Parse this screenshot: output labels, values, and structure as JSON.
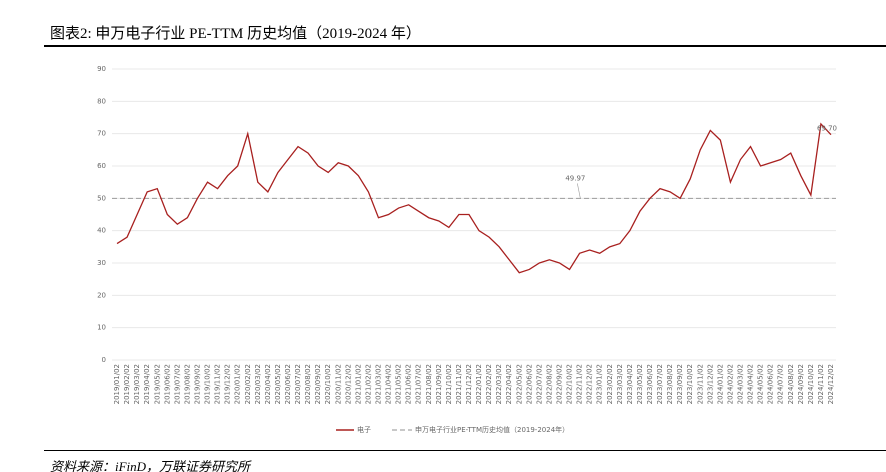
{
  "header": {
    "title": "图表2:  申万电子行业 PE-TTM 历史均值（2019-2024 年）"
  },
  "source": "资料来源：iFinD，万联证券研究所",
  "chart_data": {
    "type": "line",
    "categories": [
      "2019/01/02",
      "2019/02/02",
      "2019/03/02",
      "2019/04/02",
      "2019/05/02",
      "2019/06/02",
      "2019/07/02",
      "2019/08/02",
      "2019/09/02",
      "2019/10/02",
      "2019/11/02",
      "2019/12/02",
      "2020/01/02",
      "2020/02/02",
      "2020/03/02",
      "2020/04/02",
      "2020/05/02",
      "2020/06/02",
      "2020/07/02",
      "2020/08/02",
      "2020/09/02",
      "2020/10/02",
      "2020/11/02",
      "2020/12/02",
      "2021/01/02",
      "2021/02/02",
      "2021/03/02",
      "2021/04/02",
      "2021/05/02",
      "2021/06/02",
      "2021/07/02",
      "2021/08/02",
      "2021/09/02",
      "2021/10/02",
      "2021/11/02",
      "2021/12/02",
      "2022/01/02",
      "2022/02/02",
      "2022/03/02",
      "2022/04/02",
      "2022/05/02",
      "2022/06/02",
      "2022/07/02",
      "2022/08/02",
      "2022/09/02",
      "2022/10/02",
      "2022/11/02",
      "2022/12/02",
      "2023/01/02",
      "2023/02/02",
      "2023/03/02",
      "2023/04/02",
      "2023/05/02",
      "2023/06/02",
      "2023/07/02",
      "2023/08/02",
      "2023/09/02",
      "2023/10/02",
      "2023/11/02",
      "2023/12/02",
      "2024/01/02",
      "2024/02/02",
      "2024/03/02",
      "2024/04/02",
      "2024/05/02",
      "2024/06/02",
      "2024/07/02",
      "2024/08/02",
      "2024/09/02",
      "2024/10/02",
      "2024/11/02",
      "2024/12/02"
    ],
    "series": [
      {
        "name": "电子",
        "color": "#a8201f",
        "values": [
          36,
          38,
          45,
          52,
          53,
          45,
          42,
          44,
          50,
          55,
          53,
          57,
          60,
          70,
          55,
          52,
          58,
          62,
          66,
          64,
          60,
          58,
          61,
          60,
          57,
          52,
          44,
          45,
          47,
          48,
          46,
          44,
          43,
          41,
          45,
          45,
          40,
          38,
          35,
          31,
          27,
          28,
          30,
          31,
          30,
          28,
          33,
          34,
          33,
          35,
          36,
          40,
          46,
          50,
          53,
          52,
          50,
          56,
          65,
          71,
          68,
          55,
          62,
          66,
          60,
          61,
          62,
          64,
          57,
          51,
          73,
          69.7
        ],
        "value_labels": [
          null,
          null,
          null,
          null,
          null,
          null,
          null,
          null,
          null,
          null,
          null,
          null,
          null,
          null,
          null,
          null,
          null,
          null,
          null,
          null,
          null,
          null,
          null,
          null,
          null,
          null,
          null,
          null,
          null,
          null,
          null,
          null,
          null,
          null,
          null,
          null,
          null,
          null,
          null,
          null,
          null,
          null,
          null,
          null,
          null,
          null,
          null,
          null,
          null,
          null,
          null,
          null,
          null,
          null,
          null,
          null,
          null,
          null,
          null,
          null,
          null,
          null,
          null,
          null,
          null,
          null,
          null,
          null,
          null,
          null,
          null,
          "69.70"
        ]
      }
    ],
    "mean": {
      "name": "申万电子行业PE-TTM历史均值（2019-2024年）",
      "value": 49.97,
      "color": "#a6a6a6"
    },
    "ylim": [
      0,
      90
    ],
    "yticks": [
      0,
      10,
      20,
      30,
      40,
      50,
      60,
      70,
      80,
      90
    ],
    "grid": true
  }
}
